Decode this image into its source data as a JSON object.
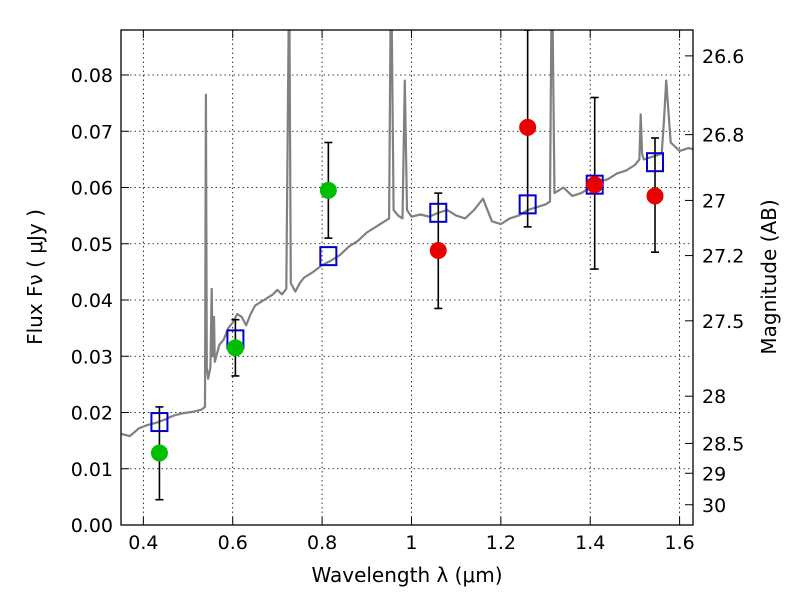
{
  "chart_data": {
    "type": "scatter",
    "xlabel": "Wavelength  λ (μm)",
    "ylabel": "Flux  Fν  ( μJy )",
    "ylabel_right": "Magnitude (AB)",
    "xlim": [
      0.35,
      1.63
    ],
    "ylim": [
      0.0,
      0.088
    ],
    "grid": true,
    "x_ticks": [
      0.4,
      0.6,
      0.8,
      1.0,
      1.2,
      1.4,
      1.6
    ],
    "x_tick_labels": [
      "0.4",
      "0.6",
      "0.8",
      "1",
      "1.2",
      "1.4",
      "1.6"
    ],
    "y_ticks": [
      0.0,
      0.01,
      0.02,
      0.03,
      0.04,
      0.05,
      0.06,
      0.07,
      0.08
    ],
    "y_tick_labels": [
      "0.00",
      "0.01",
      "0.02",
      "0.03",
      "0.04",
      "0.05",
      "0.06",
      "0.07",
      "0.08"
    ],
    "right_ticks": [
      {
        "label": "26.6",
        "flux": 0.0834
      },
      {
        "label": "26.8",
        "flux": 0.0694
      },
      {
        "label": "27",
        "flux": 0.0577
      },
      {
        "label": "27.2",
        "flux": 0.0479
      },
      {
        "label": "27.5",
        "flux": 0.0363
      },
      {
        "label": "28",
        "flux": 0.0229
      },
      {
        "label": "28.5",
        "flux": 0.0145
      },
      {
        "label": "29",
        "flux": 0.0092
      },
      {
        "label": "30",
        "flux": 0.0036
      }
    ],
    "colors": {
      "green": "#00bf00",
      "red": "#e80000",
      "model": "#0000cc",
      "spectrum": "#808080"
    },
    "spectrum": {
      "x": [
        0.35,
        0.36,
        0.37,
        0.38,
        0.39,
        0.4,
        0.41,
        0.42,
        0.43,
        0.44,
        0.45,
        0.46,
        0.47,
        0.48,
        0.49,
        0.5,
        0.51,
        0.52,
        0.53,
        0.538,
        0.54,
        0.542,
        0.545,
        0.55,
        0.553,
        0.555,
        0.558,
        0.56,
        0.57,
        0.58,
        0.59,
        0.6,
        0.61,
        0.62,
        0.63,
        0.64,
        0.65,
        0.66,
        0.67,
        0.68,
        0.69,
        0.7,
        0.71,
        0.72,
        0.725,
        0.727,
        0.73,
        0.74,
        0.75,
        0.76,
        0.78,
        0.8,
        0.82,
        0.84,
        0.86,
        0.88,
        0.9,
        0.92,
        0.94,
        0.95,
        0.953,
        0.956,
        0.96,
        0.97,
        0.98,
        0.985,
        0.99,
        1.0,
        1.02,
        1.04,
        1.06,
        1.08,
        1.1,
        1.12,
        1.14,
        1.16,
        1.18,
        1.2,
        1.22,
        1.24,
        1.26,
        1.28,
        1.3,
        1.31,
        1.313,
        1.316,
        1.32,
        1.34,
        1.36,
        1.38,
        1.4,
        1.42,
        1.44,
        1.46,
        1.48,
        1.5,
        1.51,
        1.513,
        1.516,
        1.52,
        1.54,
        1.56,
        1.565,
        1.57,
        1.58,
        1.6,
        1.62,
        1.63
      ],
      "y": [
        0.0162,
        0.016,
        0.0158,
        0.0165,
        0.0172,
        0.0175,
        0.0178,
        0.018,
        0.0182,
        0.0185,
        0.0188,
        0.0192,
        0.0195,
        0.0197,
        0.0199,
        0.02,
        0.0201,
        0.0203,
        0.0205,
        0.021,
        0.0765,
        0.028,
        0.026,
        0.028,
        0.042,
        0.03,
        0.037,
        0.029,
        0.032,
        0.033,
        0.035,
        0.036,
        0.0375,
        0.037,
        0.0355,
        0.0375,
        0.039,
        0.0395,
        0.04,
        0.0405,
        0.041,
        0.0418,
        0.041,
        0.042,
        0.088,
        0.088,
        0.043,
        0.0415,
        0.043,
        0.044,
        0.045,
        0.0462,
        0.047,
        0.048,
        0.0495,
        0.0505,
        0.052,
        0.053,
        0.054,
        0.0545,
        0.088,
        0.088,
        0.056,
        0.055,
        0.0545,
        0.079,
        0.056,
        0.0548,
        0.0552,
        0.0548,
        0.0555,
        0.056,
        0.055,
        0.0545,
        0.056,
        0.058,
        0.054,
        0.0535,
        0.0545,
        0.055,
        0.056,
        0.0565,
        0.057,
        0.0575,
        0.088,
        0.088,
        0.059,
        0.06,
        0.0585,
        0.059,
        0.06,
        0.061,
        0.0615,
        0.0625,
        0.063,
        0.064,
        0.065,
        0.073,
        0.066,
        0.065,
        0.0655,
        0.066,
        0.072,
        0.079,
        0.068,
        0.0665,
        0.067,
        0.0668
      ]
    },
    "series": [
      {
        "marker": "circle",
        "color": "green",
        "points": [
          {
            "x": 0.436,
            "y": 0.0128
          },
          {
            "x": 0.606,
            "y": 0.0315
          },
          {
            "x": 0.814,
            "y": 0.0595
          }
        ]
      },
      {
        "marker": "circle",
        "color": "red",
        "points": [
          {
            "x": 1.06,
            "y": 0.0488
          },
          {
            "x": 1.26,
            "y": 0.0707
          },
          {
            "x": 1.41,
            "y": 0.0605
          },
          {
            "x": 1.545,
            "y": 0.0585
          }
        ]
      },
      {
        "marker": "open-square",
        "color": "model",
        "points": [
          {
            "x": 0.436,
            "y": 0.0183
          },
          {
            "x": 0.606,
            "y": 0.033
          },
          {
            "x": 0.814,
            "y": 0.0478
          },
          {
            "x": 1.06,
            "y": 0.0555
          },
          {
            "x": 1.26,
            "y": 0.057
          },
          {
            "x": 1.41,
            "y": 0.0605
          },
          {
            "x": 1.545,
            "y": 0.0645
          }
        ]
      }
    ],
    "error_bars": [
      {
        "x": 0.436,
        "low": 0.0045,
        "high": 0.021
      },
      {
        "x": 0.606,
        "low": 0.0265,
        "high": 0.0365
      },
      {
        "x": 0.814,
        "low": 0.051,
        "high": 0.068
      },
      {
        "x": 1.06,
        "low": 0.0385,
        "high": 0.059
      },
      {
        "x": 1.26,
        "low": 0.053,
        "high": 0.088
      },
      {
        "x": 1.41,
        "low": 0.0455,
        "high": 0.076
      },
      {
        "x": 1.545,
        "low": 0.0485,
        "high": 0.0688
      }
    ]
  }
}
